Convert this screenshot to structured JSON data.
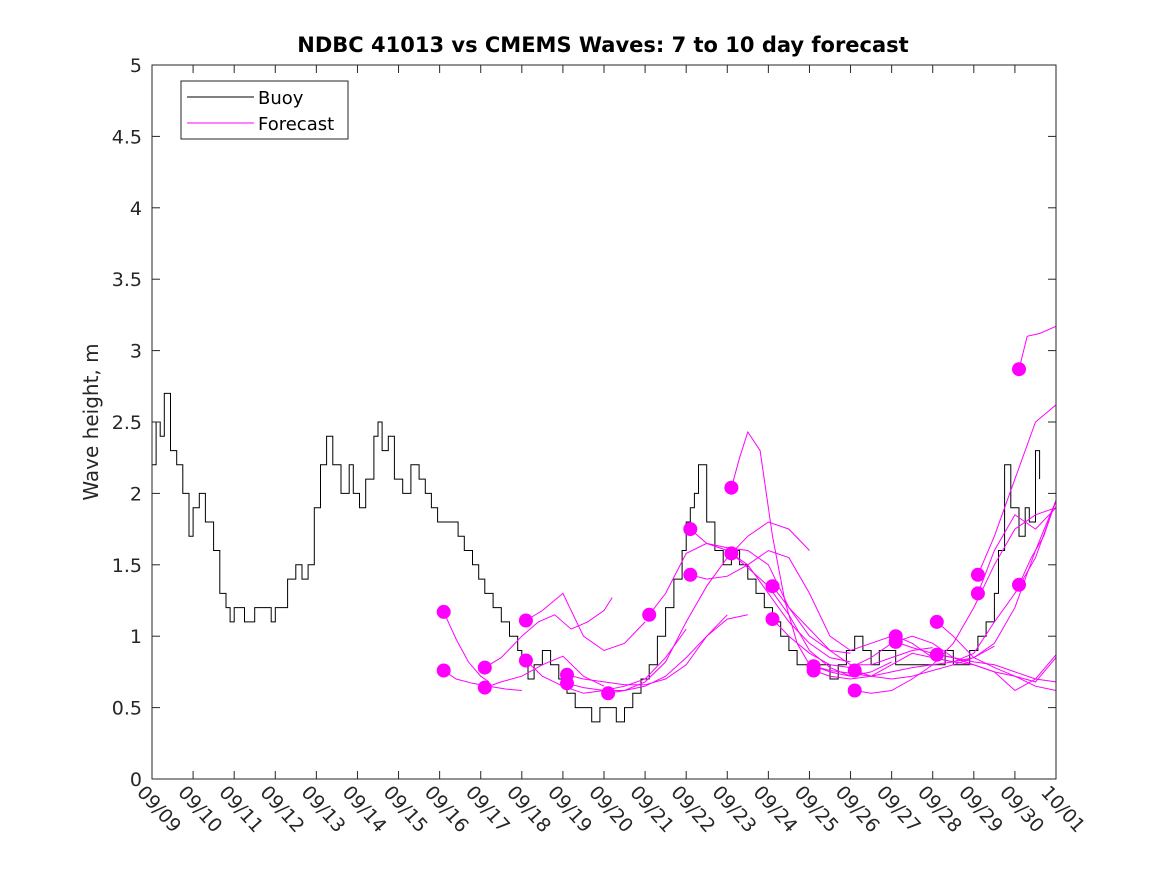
{
  "chart_data": {
    "type": "line",
    "title": "NDBC 41013 vs CMEMS Waves: 7 to 10 day forecast",
    "xlabel": "",
    "ylabel": "Wave height, m",
    "ylim": [
      0,
      5
    ],
    "yticks": [
      0,
      0.5,
      1,
      1.5,
      2,
      2.5,
      3,
      3.5,
      4,
      4.5,
      5
    ],
    "ytick_labels": [
      "0",
      "0.5",
      "1",
      "1.5",
      "2",
      "2.5",
      "3",
      "3.5",
      "4",
      "4.5",
      "5"
    ],
    "xlim_days": [
      0,
      22
    ],
    "xtick_labels": [
      "09/09",
      "09/10",
      "09/11",
      "09/12",
      "09/13",
      "09/14",
      "09/15",
      "09/16",
      "09/17",
      "09/18",
      "09/19",
      "09/20",
      "09/21",
      "09/22",
      "09/23",
      "09/24",
      "09/25",
      "09/26",
      "09/27",
      "09/28",
      "09/29",
      "09/30",
      "10/01"
    ],
    "grid": false,
    "legend": {
      "position": "top-left",
      "entries": [
        "Buoy",
        "Forecast"
      ]
    },
    "colors": {
      "buoy": "#000000",
      "forecast": "#ff00ff"
    },
    "buoy": {
      "name": "Buoy",
      "day": [
        0,
        0.1,
        0.2,
        0.3,
        0.45,
        0.6,
        0.75,
        0.9,
        1.0,
        1.15,
        1.3,
        1.5,
        1.65,
        1.8,
        1.9,
        2.0,
        2.25,
        2.5,
        2.75,
        2.9,
        3.0,
        3.15,
        3.3,
        3.5,
        3.65,
        3.8,
        3.95,
        4.1,
        4.25,
        4.4,
        4.6,
        4.8,
        4.9,
        5.05,
        5.2,
        5.4,
        5.5,
        5.6,
        5.75,
        5.9,
        6.1,
        6.3,
        6.5,
        6.65,
        6.8,
        6.95,
        7.1,
        7.2,
        7.3,
        7.45,
        7.6,
        7.8,
        7.95,
        8.1,
        8.3,
        8.5,
        8.7,
        8.9,
        9.0,
        9.15,
        9.3,
        9.5,
        9.7,
        9.9,
        10.1,
        10.3,
        10.5,
        10.7,
        10.9,
        11.1,
        11.3,
        11.5,
        11.7,
        11.9,
        12.1,
        12.3,
        12.5,
        12.7,
        12.9,
        13.0,
        13.1,
        13.2,
        13.3,
        13.5,
        13.7,
        13.9,
        14.1,
        14.3,
        14.5,
        14.7,
        14.9,
        15.1,
        15.3,
        15.5,
        15.7,
        15.9,
        16.1,
        16.3,
        16.5,
        16.7,
        16.9,
        17.1,
        17.3,
        17.5,
        17.7,
        17.9,
        18.1,
        18.3,
        18.5,
        18.7,
        18.9,
        19.1,
        19.3,
        19.5,
        19.7,
        19.9,
        20.1,
        20.3,
        20.5,
        20.6,
        20.75,
        20.9,
        21.1,
        21.25,
        21.35,
        21.5,
        21.6
      ],
      "values": [
        2.2,
        2.5,
        2.4,
        2.7,
        2.3,
        2.2,
        2.0,
        1.7,
        1.9,
        2.0,
        1.8,
        1.6,
        1.3,
        1.2,
        1.1,
        1.2,
        1.1,
        1.2,
        1.2,
        1.1,
        1.2,
        1.2,
        1.4,
        1.5,
        1.4,
        1.5,
        1.9,
        2.2,
        2.4,
        2.2,
        2.0,
        2.2,
        2.0,
        1.9,
        2.1,
        2.4,
        2.5,
        2.3,
        2.4,
        2.1,
        2.0,
        2.2,
        2.1,
        2.0,
        1.9,
        1.8,
        1.8,
        1.8,
        1.8,
        1.7,
        1.6,
        1.5,
        1.4,
        1.3,
        1.2,
        1.1,
        1.0,
        0.9,
        0.8,
        0.7,
        0.8,
        0.9,
        0.8,
        0.7,
        0.6,
        0.5,
        0.5,
        0.4,
        0.5,
        0.5,
        0.4,
        0.5,
        0.6,
        0.7,
        0.8,
        1.0,
        1.2,
        1.4,
        1.6,
        1.8,
        1.9,
        2.0,
        2.2,
        1.8,
        1.6,
        1.5,
        1.6,
        1.5,
        1.4,
        1.3,
        1.2,
        1.1,
        1.0,
        0.9,
        0.8,
        0.8,
        0.8,
        0.8,
        0.7,
        0.8,
        0.9,
        1.0,
        0.9,
        0.8,
        0.9,
        0.9,
        0.8,
        0.8,
        0.8,
        0.8,
        0.8,
        0.8,
        0.9,
        0.8,
        0.8,
        0.9,
        1.0,
        1.1,
        1.3,
        1.6,
        2.2,
        1.9,
        1.7,
        1.9,
        1.8,
        2.3,
        2.1
      ]
    },
    "forecasts": [
      {
        "start_day": 7.1,
        "day": [
          7.1,
          7.4,
          7.7,
          8.0,
          8.2
        ],
        "values": [
          1.17,
          0.98,
          0.82,
          0.72,
          0.68
        ]
      },
      {
        "start_day": 7.1,
        "day": [
          7.1,
          7.4,
          7.8,
          8.2,
          8.6,
          9.0
        ],
        "values": [
          0.76,
          0.7,
          0.67,
          0.65,
          0.63,
          0.62
        ]
      },
      {
        "start_day": 8.1,
        "day": [
          8.1,
          8.5,
          9.0,
          9.5,
          10.0,
          10.5,
          11.0
        ],
        "values": [
          0.64,
          0.68,
          0.72,
          0.8,
          0.86,
          0.72,
          0.65
        ]
      },
      {
        "start_day": 8.1,
        "day": [
          8.1,
          8.5,
          9.0,
          9.4,
          9.8,
          10.2,
          10.6,
          11.0,
          11.2
        ],
        "values": [
          0.78,
          0.85,
          1.0,
          1.1,
          1.15,
          1.05,
          1.1,
          1.18,
          1.27
        ]
      },
      {
        "start_day": 9.1,
        "day": [
          9.1,
          9.5,
          10.0,
          10.5,
          11.0,
          11.5,
          12.0
        ],
        "values": [
          1.11,
          1.18,
          1.3,
          1.0,
          0.9,
          0.95,
          1.1
        ]
      },
      {
        "start_day": 9.1,
        "day": [
          9.1,
          9.5,
          10.0,
          10.5,
          11.0,
          11.5,
          12.0,
          12.5,
          13.0
        ],
        "values": [
          0.83,
          0.72,
          0.65,
          0.6,
          0.62,
          0.65,
          0.7,
          0.85,
          1.05
        ]
      },
      {
        "start_day": 10.1,
        "day": [
          10.1,
          10.5,
          11.0,
          11.5,
          12.0,
          12.5,
          13.0,
          13.5,
          14.0
        ],
        "values": [
          0.73,
          0.7,
          0.68,
          0.66,
          0.66,
          0.7,
          0.8,
          1.0,
          1.15
        ]
      },
      {
        "start_day": 10.1,
        "day": [
          10.1,
          10.5,
          11.0,
          11.5,
          12.0,
          12.5,
          13.0,
          13.5,
          14.0,
          14.5
        ],
        "values": [
          0.67,
          0.64,
          0.62,
          0.62,
          0.65,
          0.72,
          0.85,
          1.0,
          1.12,
          1.15
        ]
      },
      {
        "start_day": 11.1,
        "day": [
          11.1,
          11.5,
          12.0,
          12.5,
          13.0,
          13.5,
          14.0,
          14.5,
          15.0,
          15.5,
          16.0
        ],
        "values": [
          0.6,
          0.62,
          0.68,
          0.82,
          1.1,
          1.35,
          1.55,
          1.7,
          1.8,
          1.75,
          1.6
        ]
      },
      {
        "start_day": 12.1,
        "day": [
          12.1,
          12.5,
          13.0,
          13.5,
          14.0,
          14.5,
          15.0,
          15.5,
          16.0,
          16.5,
          17.0
        ],
        "values": [
          1.15,
          1.3,
          1.58,
          1.65,
          1.62,
          1.6,
          1.5,
          1.2,
          1.0,
          0.9,
          0.88
        ]
      },
      {
        "start_day": 13.1,
        "day": [
          13.1,
          13.5,
          14.0,
          14.5,
          15.0,
          15.5,
          16.0,
          16.5,
          17.0
        ],
        "values": [
          1.75,
          1.65,
          1.6,
          1.5,
          1.3,
          1.1,
          0.95,
          0.85,
          0.82
        ]
      },
      {
        "start_day": 13.1,
        "day": [
          13.1,
          13.5,
          14.0,
          14.5,
          15.0,
          15.5,
          16.0,
          16.5,
          17.0,
          17.5,
          18.0
        ],
        "values": [
          1.43,
          1.4,
          1.42,
          1.5,
          1.6,
          1.55,
          1.3,
          1.0,
          0.9,
          0.95,
          1.0
        ]
      },
      {
        "start_day": 14.1,
        "day": [
          14.1,
          14.3,
          14.5,
          14.8,
          15.1,
          15.4,
          15.7,
          16.0,
          16.5,
          17.0
        ],
        "values": [
          2.04,
          2.25,
          2.43,
          2.3,
          1.7,
          1.25,
          0.95,
          0.8,
          0.75,
          0.72
        ]
      },
      {
        "start_day": 14.1,
        "day": [
          14.1,
          14.5,
          15.0,
          15.5,
          16.0,
          16.5,
          17.0,
          17.5,
          18.0
        ],
        "values": [
          1.58,
          1.48,
          1.35,
          1.15,
          0.9,
          0.78,
          0.72,
          0.75,
          0.82
        ]
      },
      {
        "start_day": 15.1,
        "day": [
          15.1,
          15.5,
          16.0,
          16.5,
          17.0,
          17.5,
          18.0,
          18.5,
          19.0
        ],
        "values": [
          1.35,
          1.2,
          1.05,
          0.9,
          0.8,
          0.8,
          0.85,
          0.9,
          0.92
        ]
      },
      {
        "start_day": 15.1,
        "day": [
          15.1,
          15.5,
          16.0,
          16.5,
          17.0,
          17.5,
          18.0,
          18.5,
          19.0,
          19.5,
          20.0
        ],
        "values": [
          1.12,
          1.0,
          0.88,
          0.8,
          0.78,
          0.85,
          0.95,
          1.0,
          0.95,
          0.85,
          0.8
        ]
      },
      {
        "start_day": 16.1,
        "day": [
          16.1,
          16.5,
          17.0,
          17.5,
          18.0,
          18.5,
          19.0,
          19.5,
          20.0,
          20.5
        ],
        "values": [
          0.79,
          0.76,
          0.74,
          0.72,
          0.7,
          0.72,
          0.76,
          0.8,
          0.85,
          0.93
        ]
      },
      {
        "start_day": 16.1,
        "day": [
          16.1,
          16.5,
          17.0,
          17.5,
          18.0,
          18.5,
          19.0,
          19.5,
          20.0,
          20.5,
          21.0,
          21.5,
          22.0
        ],
        "values": [
          0.76,
          0.72,
          0.7,
          0.72,
          0.75,
          0.78,
          0.8,
          0.82,
          0.8,
          0.75,
          0.62,
          0.7,
          0.87
        ]
      },
      {
        "start_day": 17.1,
        "day": [
          17.1,
          17.5,
          18.0,
          18.5,
          19.0,
          19.5,
          20.0,
          20.5,
          21.0,
          21.5,
          22.0
        ],
        "values": [
          0.76,
          0.72,
          0.8,
          0.88,
          0.85,
          0.82,
          0.88,
          1.1,
          1.3,
          1.55,
          1.95
        ]
      },
      {
        "start_day": 17.1,
        "day": [
          17.1,
          17.5,
          18.0,
          18.5,
          19.0,
          19.5,
          20.0,
          20.5,
          21.0,
          21.5,
          22.0
        ],
        "values": [
          0.62,
          0.6,
          0.62,
          0.7,
          0.8,
          0.95,
          1.2,
          1.5,
          1.75,
          1.85,
          1.9
        ]
      },
      {
        "start_day": 18.1,
        "day": [
          18.1,
          18.5,
          19.0,
          19.5,
          20.0,
          20.5,
          21.0,
          21.5,
          22.0
        ],
        "values": [
          0.96,
          0.92,
          0.88,
          0.85,
          0.8,
          0.75,
          0.72,
          0.65,
          0.62
        ]
      },
      {
        "start_day": 18.1,
        "day": [
          18.1,
          18.5,
          19.0,
          19.5,
          20.0,
          20.5,
          21.0,
          21.5,
          22.0
        ],
        "values": [
          1.0,
          0.95,
          0.85,
          0.82,
          0.85,
          0.95,
          1.2,
          1.6,
          1.95
        ]
      },
      {
        "start_day": 19.1,
        "day": [
          19.1,
          19.5,
          20.0,
          20.5,
          21.0,
          21.5,
          22.0
        ],
        "values": [
          1.1,
          1.0,
          0.85,
          0.78,
          0.72,
          0.68,
          0.85
        ]
      },
      {
        "start_day": 19.1,
        "day": [
          19.1,
          19.5,
          20.0,
          20.5,
          21.0,
          21.5,
          22.0
        ],
        "values": [
          0.87,
          0.85,
          0.82,
          0.8,
          0.75,
          0.7,
          0.68
        ]
      },
      {
        "start_day": 20.1,
        "day": [
          20.1,
          20.5,
          21.0,
          21.5,
          22.0
        ],
        "values": [
          1.43,
          1.7,
          2.1,
          2.5,
          2.62
        ]
      },
      {
        "start_day": 20.1,
        "day": [
          20.1,
          20.5,
          21.0,
          21.5,
          22.0
        ],
        "values": [
          1.3,
          1.6,
          1.85,
          1.75,
          1.9
        ]
      },
      {
        "start_day": 21.1,
        "day": [
          21.1,
          21.3,
          21.6,
          22.0
        ],
        "values": [
          2.87,
          3.1,
          3.12,
          3.17
        ]
      },
      {
        "start_day": 21.1,
        "day": [
          21.1,
          21.4,
          21.7,
          22.0
        ],
        "values": [
          1.36,
          1.55,
          1.7,
          1.95
        ]
      }
    ]
  }
}
